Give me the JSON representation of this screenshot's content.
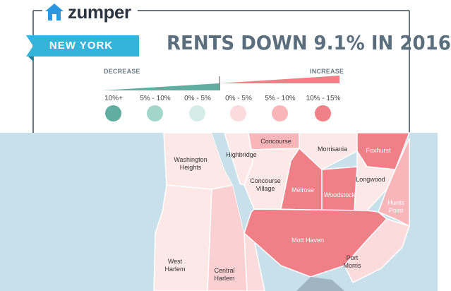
{
  "brand": {
    "name": "zumper",
    "icon": "house-icon"
  },
  "ribbon": {
    "label": "NEW YORK"
  },
  "headline": {
    "text": "RENTS DOWN 9.1% IN 2016"
  },
  "legend": {
    "decrease_label": "DECREASE",
    "increase_label": "INCREASE",
    "bins": [
      {
        "label": "10%+",
        "color": "#5fae9f"
      },
      {
        "label": "5% - 10%",
        "color": "#a3d6cb"
      },
      {
        "label": "0% - 5%",
        "color": "#d4ede8"
      },
      {
        "label": "0% - 5%",
        "color": "#fbdbdc"
      },
      {
        "label": "5% - 10%",
        "color": "#f8b6bb"
      },
      {
        "label": "10% - 15%",
        "color": "#f08088"
      }
    ]
  },
  "colors": {
    "accent": "#34b4d8",
    "water": "#c8e0ea",
    "text": "#5a6e7c"
  },
  "neighborhoods": {
    "washington_heights": {
      "line1": "Washington",
      "line2": "Heights"
    },
    "highbridge": "Highbridge",
    "concourse": "Concourse",
    "morrisania": "Morrisania",
    "foxhurst": "Foxhurst",
    "concourse_village": {
      "line1": "Concourse",
      "line2": "Village"
    },
    "melrose": "Melrose",
    "woodstock": "Woodstock",
    "longwood": "Longwood",
    "hunts_point": {
      "line1": "Hunts",
      "line2": "Point"
    },
    "mott_haven": "Mott Haven",
    "port_morris": {
      "line1": "Port",
      "line2": "Morris"
    },
    "west_harlem": {
      "line1": "West",
      "line2": "Harlem"
    },
    "central_harlem": {
      "line1": "Central",
      "line2": "Harlem"
    }
  }
}
